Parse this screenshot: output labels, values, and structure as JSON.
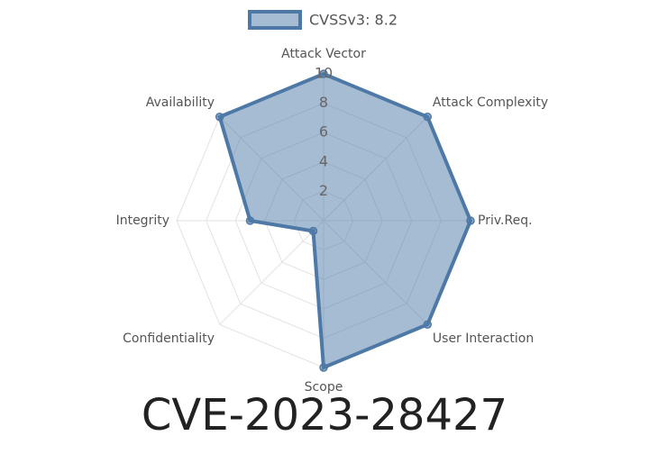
{
  "chart_data": {
    "type": "radar",
    "title": "CVE-2023-28427",
    "categories": [
      "Attack Vector",
      "Attack Complexity",
      "Priv.Req.",
      "User Interaction",
      "Scope",
      "Confidentiality",
      "Integrity",
      "Availability"
    ],
    "series": [
      {
        "name": "CVSSv3: 8.2",
        "color": "#4e79a7",
        "values": [
          10,
          10,
          10,
          10,
          10,
          1,
          5,
          10
        ]
      }
    ],
    "rlim": [
      0,
      10
    ],
    "rticks": [
      2,
      4,
      6,
      8,
      10
    ],
    "grid": true,
    "legend": "top"
  }
}
